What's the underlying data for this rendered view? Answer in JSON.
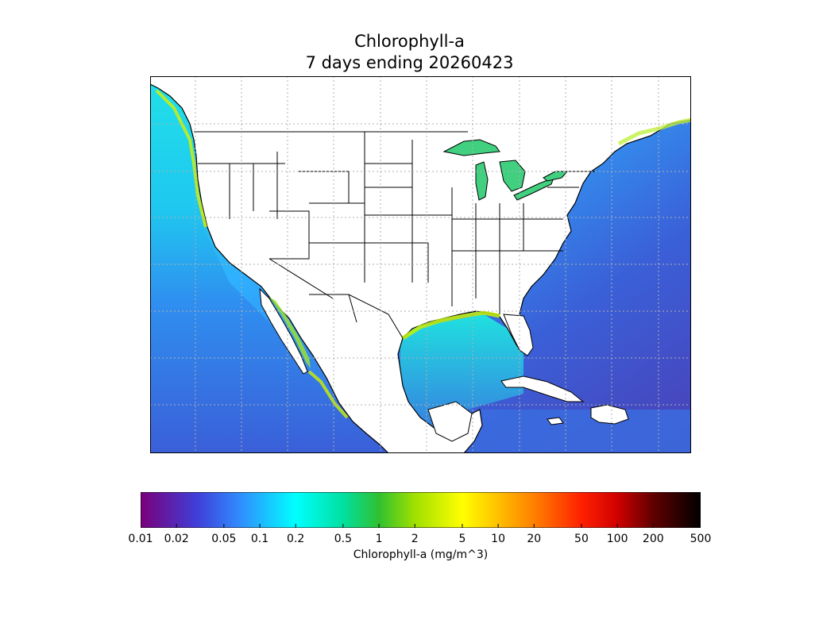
{
  "title_line1": "Chlorophyll-a",
  "title_line2": "7 days ending 20260423",
  "colorbar": {
    "label": "Chlorophyll-a (mg/m^3)",
    "scale": "log",
    "min": 0.01,
    "max": 500,
    "ticks": [
      "0.01",
      "0.02",
      "0.05",
      "0.1",
      "0.2",
      "0.5",
      "1",
      "2",
      "5",
      "10",
      "20",
      "50",
      "100",
      "200",
      "500"
    ],
    "stops": [
      {
        "value": 0.01,
        "color": "#7a007a"
      },
      {
        "value": 0.03,
        "color": "#3f3fd9"
      },
      {
        "value": 0.07,
        "color": "#2f8fff"
      },
      {
        "value": 0.2,
        "color": "#00ffff"
      },
      {
        "value": 0.5,
        "color": "#00e0a0"
      },
      {
        "value": 1,
        "color": "#30c030"
      },
      {
        "value": 2,
        "color": "#a0e000"
      },
      {
        "value": 5,
        "color": "#ffff00"
      },
      {
        "value": 10,
        "color": "#ffc000"
      },
      {
        "value": 20,
        "color": "#ff8000"
      },
      {
        "value": 50,
        "color": "#ff2000"
      },
      {
        "value": 100,
        "color": "#d00000"
      },
      {
        "value": 200,
        "color": "#600000"
      },
      {
        "value": 500,
        "color": "#000000"
      }
    ]
  },
  "colors": {
    "land": "#ffffff",
    "deep_ocean": "#3d5fd6",
    "open_ocean": "#2f9fff",
    "shelf_water": "#1fe0e0",
    "coastal_bloom": "#d8f000",
    "lakes": "#40d080",
    "border": "#000000",
    "grid": "#b0b0b0"
  }
}
